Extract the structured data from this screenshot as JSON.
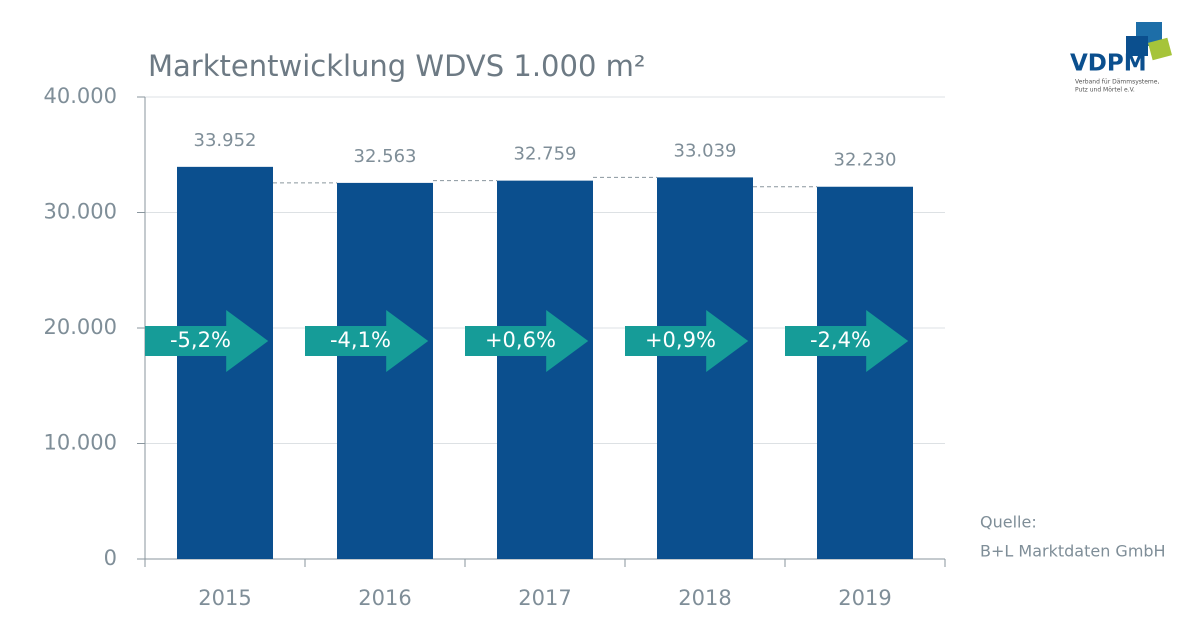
{
  "chart_data": {
    "type": "bar",
    "title": "Marktentwicklung WDVS 1.000 m²",
    "categories": [
      "2015",
      "2016",
      "2017",
      "2018",
      "2019"
    ],
    "values": [
      33952,
      32563,
      32759,
      33039,
      32230
    ],
    "value_labels": [
      "33.952",
      "32.563",
      "32.759",
      "33.039",
      "32.230"
    ],
    "annotations": [
      "-5,2%",
      "-4,1%",
      "+0,6%",
      "+0,9%",
      "-2,4%"
    ],
    "color": "#0b4f8e",
    "arrow_color": "#169c98",
    "ylim": [
      0,
      40000
    ],
    "yticks": [
      0,
      {
        "value": 10000,
        "label": "10.000"
      },
      {
        "value": 20000,
        "label": "20.000"
      },
      {
        "value": 30000,
        "label": "30.000"
      },
      {
        "value": 40000,
        "label": "40.000"
      }
    ],
    "grid": true
  },
  "logo": {
    "name": "VDPM",
    "subtitle_lines": [
      "Verband für Dämmsysteme,",
      "Putz und Mörtel e.V."
    ]
  },
  "source": {
    "label": "Quelle:",
    "text": "B+L Marktdaten GmbH"
  }
}
